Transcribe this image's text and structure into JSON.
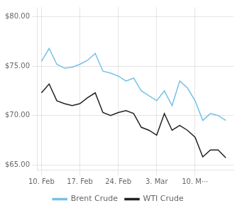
{
  "chart_data": {
    "type": "line",
    "x": [
      0,
      1,
      2,
      3,
      4,
      5,
      6,
      7,
      8,
      9,
      10,
      11,
      12,
      13,
      14,
      15,
      16,
      17,
      18,
      19,
      20,
      21,
      22,
      23,
      24
    ],
    "series": [
      {
        "name": "Brent Crude",
        "color": "#74c1e8",
        "values": [
          75.5,
          76.8,
          75.2,
          74.8,
          74.9,
          75.2,
          75.6,
          76.3,
          74.5,
          74.3,
          74.0,
          73.5,
          73.8,
          72.5,
          72.0,
          71.5,
          72.5,
          71.0,
          73.5,
          72.8,
          71.5,
          69.5,
          70.2,
          70.0,
          69.5
        ]
      },
      {
        "name": "WTI Crude",
        "color": "#222222",
        "values": [
          72.3,
          73.2,
          71.5,
          71.2,
          71.0,
          71.2,
          71.8,
          72.3,
          70.3,
          70.0,
          70.3,
          70.5,
          70.2,
          68.8,
          68.5,
          68.0,
          70.2,
          68.5,
          69.0,
          68.5,
          67.8,
          65.8,
          66.5,
          66.5,
          65.7
        ]
      }
    ],
    "xlim": [
      -0.5,
      25.0
    ],
    "xticks": [
      {
        "value": 0,
        "label": "10. Feb"
      },
      {
        "value": 5,
        "label": "17. Feb"
      },
      {
        "value": 10,
        "label": "24. Feb"
      },
      {
        "value": 15,
        "label": "3. Mar"
      },
      {
        "value": 20,
        "label": "10. M···"
      }
    ],
    "ylim": [
      64.5,
      81.0
    ],
    "yticks": [
      {
        "value": 65.0,
        "label": "$65.00"
      },
      {
        "value": 70.0,
        "label": "$70.00"
      },
      {
        "value": 75.0,
        "label": "$75.00"
      },
      {
        "value": 80.0,
        "label": "$80.00"
      }
    ],
    "grid": true,
    "legend": "bottom"
  }
}
